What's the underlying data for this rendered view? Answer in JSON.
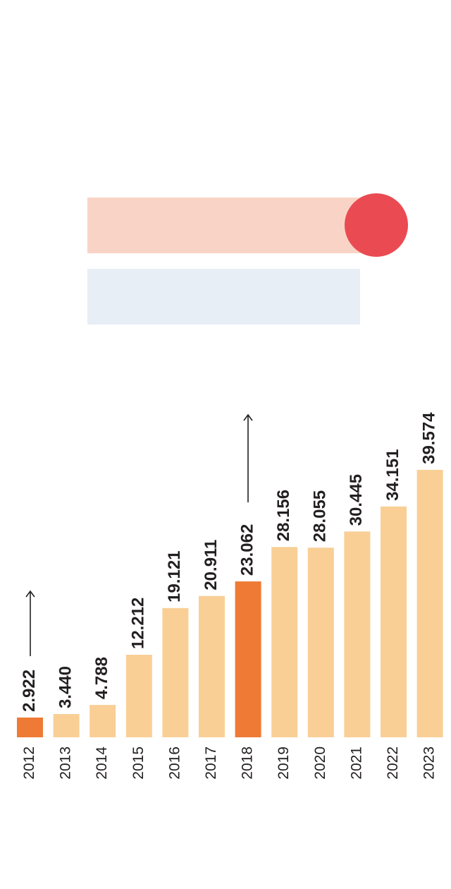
{
  "chart_data": {
    "type": "bar",
    "categories": [
      "2012",
      "2013",
      "2014",
      "2015",
      "2016",
      "2017",
      "2018",
      "2019",
      "2020",
      "2021",
      "2022",
      "2023"
    ],
    "values": [
      2.922,
      3.44,
      4.788,
      12.212,
      19.121,
      20.911,
      23.062,
      28.156,
      28.055,
      30.445,
      34.151,
      39.574
    ],
    "value_labels": [
      "2.922",
      "3.440",
      "4.788",
      "12.212",
      "19.121",
      "20.911",
      "23.062",
      "28.156",
      "28.055",
      "30.445",
      "34.151",
      "39.574"
    ],
    "colors": [
      "#ee7a35",
      "#f9cf96",
      "#f9cf96",
      "#f9cf96",
      "#f9cf96",
      "#f9cf96",
      "#ee7a35",
      "#f9cf96",
      "#f9cf96",
      "#f9cf96",
      "#f9cf96",
      "#f9cf96"
    ]
  }
}
